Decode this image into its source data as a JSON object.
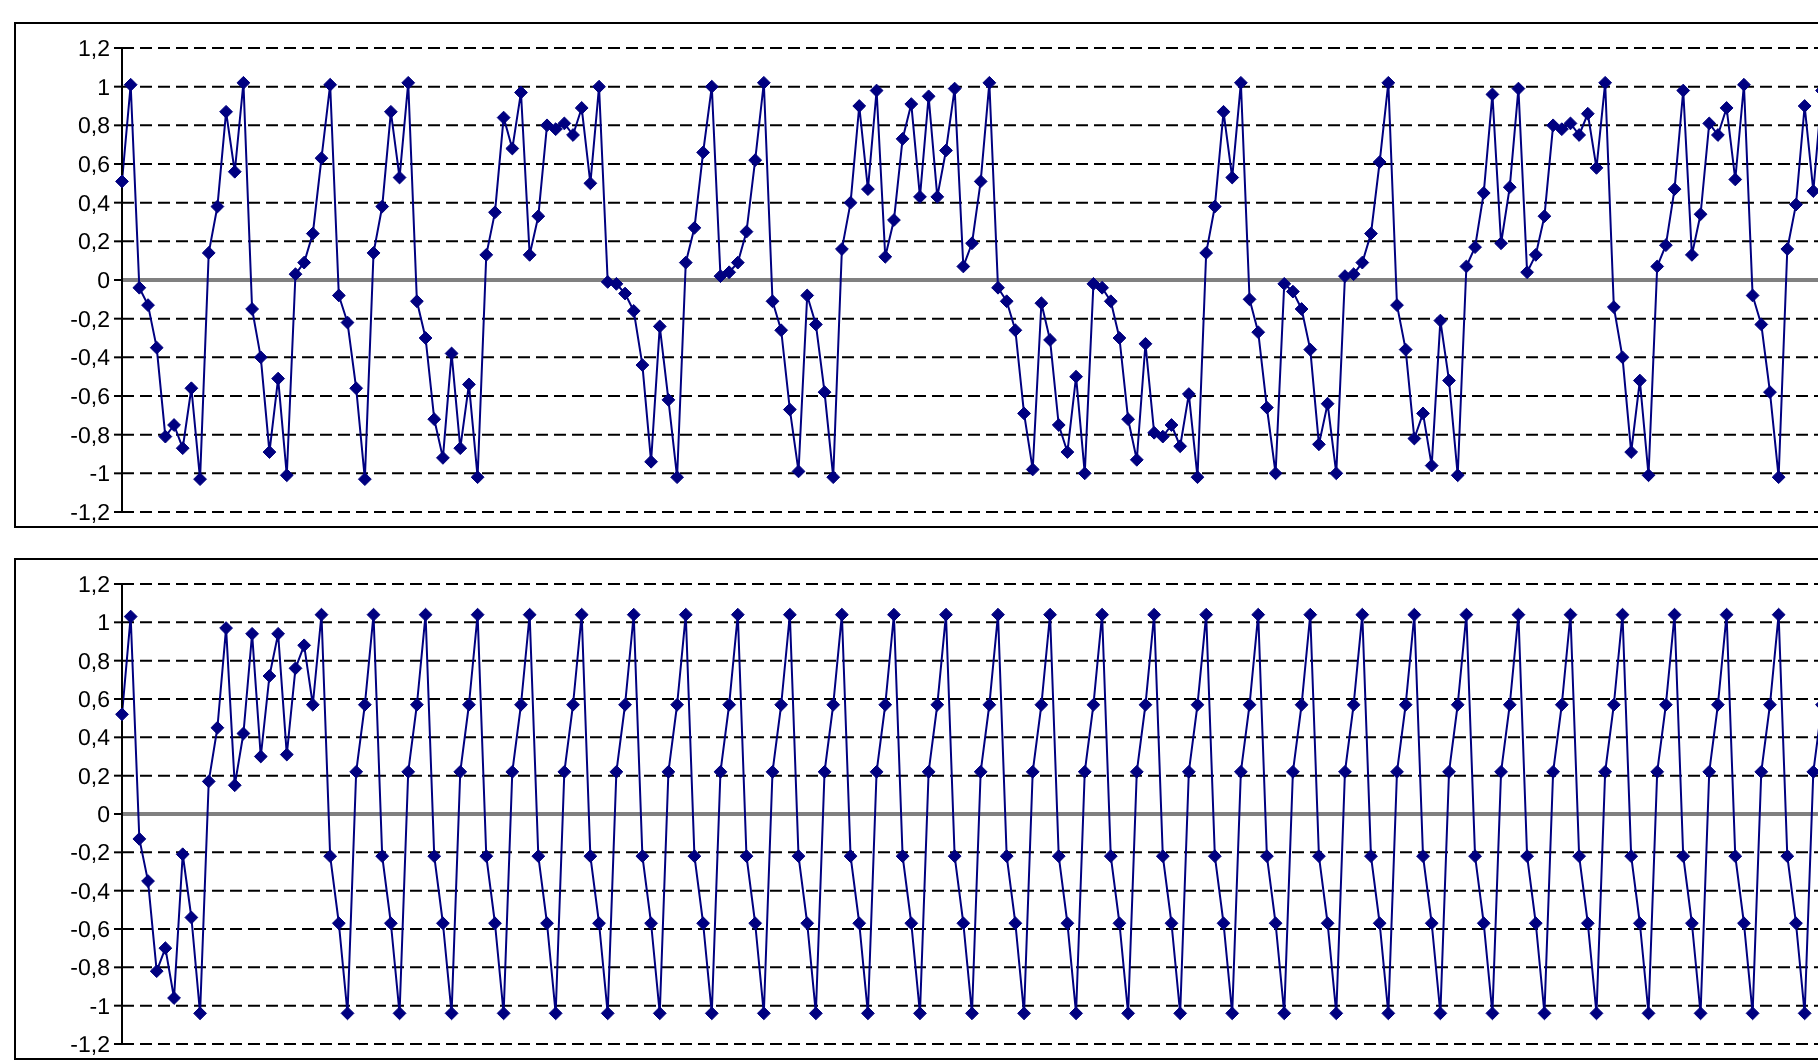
{
  "chart_data": [
    {
      "type": "line",
      "categories": [
        null,
        null,
        null,
        null,
        null,
        null,
        null,
        null,
        null,
        null,
        null,
        null,
        null,
        null,
        null,
        null,
        null,
        null,
        null,
        null,
        null,
        null,
        null,
        null,
        null,
        null,
        null,
        null,
        null,
        null,
        null,
        null,
        null,
        null,
        null,
        null,
        null,
        null,
        null,
        null,
        null,
        null,
        null,
        null,
        null,
        null,
        null,
        null,
        null,
        null,
        null,
        null,
        null,
        null,
        null,
        null,
        null,
        null,
        null,
        null,
        null,
        null,
        null,
        null,
        null,
        null,
        null,
        null,
        null,
        null,
        null,
        null,
        null,
        null,
        null,
        null,
        null,
        null,
        null,
        null,
        null,
        null,
        null,
        null,
        null,
        null,
        null,
        null,
        null,
        null,
        null,
        null,
        null,
        null,
        null,
        null,
        null,
        null,
        null,
        null,
        null,
        null,
        null,
        null,
        null,
        null,
        null,
        null,
        null,
        null,
        null,
        null,
        null,
        null,
        null,
        null,
        null,
        null,
        null,
        null,
        null,
        null,
        null,
        null,
        null,
        null,
        null,
        null,
        null,
        null,
        null,
        null,
        null,
        null,
        null,
        null,
        null,
        null,
        null,
        null,
        null,
        null,
        null,
        null,
        null,
        null,
        null,
        null,
        null,
        null,
        null,
        null,
        null,
        null,
        null,
        null,
        null,
        null,
        null,
        null,
        null,
        null,
        null,
        null,
        null,
        null,
        null,
        null,
        null,
        null,
        null,
        null,
        null,
        null,
        null,
        null,
        null,
        null,
        null,
        null,
        null,
        null,
        null,
        null,
        null,
        null,
        null,
        null,
        null,
        null,
        null,
        null,
        null,
        null,
        null,
        null,
        null
      ],
      "series": [
        {
          "color": "#000080",
          "values": [
            0.51,
            1.01,
            -0.04,
            -0.13,
            -0.35,
            -0.81,
            -0.75,
            -0.87,
            -0.56,
            -1.03,
            0.14,
            0.38,
            0.87,
            0.56,
            1.02,
            -0.15,
            -0.4,
            -0.89,
            -0.51,
            -1.01,
            0.03,
            0.09,
            0.24,
            0.63,
            1.01,
            -0.08,
            -0.22,
            -0.56,
            -1.03,
            0.14,
            0.38,
            0.87,
            0.53,
            1.02,
            -0.11,
            -0.3,
            -0.72,
            -0.92,
            -0.38,
            -0.87,
            -0.54,
            -1.02,
            0.13,
            0.35,
            0.84,
            0.68,
            0.97,
            0.13,
            0.33,
            0.8,
            0.78,
            0.81,
            0.75,
            0.89,
            0.5,
            1.0,
            -0.01,
            -0.02,
            -0.07,
            -0.16,
            -0.44,
            -0.94,
            -0.24,
            -0.62,
            -1.02,
            0.09,
            0.27,
            0.66,
            1.0,
            0.02,
            0.04,
            0.09,
            0.25,
            0.62,
            1.02,
            -0.11,
            -0.26,
            -0.67,
            -0.99,
            -0.08,
            -0.23,
            -0.58,
            -1.02,
            0.16,
            0.4,
            0.9,
            0.47,
            0.98,
            0.12,
            0.31,
            0.73,
            0.91,
            0.43,
            0.95,
            0.43,
            0.67,
            0.99,
            0.07,
            0.19,
            0.51,
            1.02,
            -0.04,
            -0.11,
            -0.26,
            -0.69,
            -0.98,
            -0.12,
            -0.31,
            -0.75,
            -0.89,
            -0.5,
            -1.0,
            -0.02,
            -0.04,
            -0.11,
            -0.3,
            -0.72,
            -0.93,
            -0.33,
            -0.79,
            -0.81,
            -0.75,
            -0.86,
            -0.59,
            -1.02,
            0.14,
            0.38,
            0.87,
            0.53,
            1.02,
            -0.1,
            -0.27,
            -0.66,
            -1.0,
            -0.02,
            -0.06,
            -0.15,
            -0.36,
            -0.85,
            -0.64,
            -1.0,
            0.02,
            0.03,
            0.09,
            0.24,
            0.61,
            1.02,
            -0.13,
            -0.36,
            -0.82,
            -0.69,
            -0.96,
            -0.21,
            -0.52,
            -1.01,
            0.07,
            0.17,
            0.45,
            0.96,
            0.19,
            0.48,
            0.99,
            0.04,
            0.13,
            0.33,
            0.8,
            0.78,
            0.81,
            0.75,
            0.86,
            0.58,
            1.02,
            -0.14,
            -0.4,
            -0.89,
            -0.52,
            -1.01,
            0.07,
            0.18,
            0.47,
            0.98,
            0.13,
            0.34,
            0.81,
            0.75,
            0.89,
            0.52,
            1.01,
            -0.08,
            -0.23,
            -0.58,
            -1.02,
            0.16,
            0.39,
            0.9,
            0.46,
            0.98
          ]
        }
      ],
      "ylim": [
        -1.2,
        1.2
      ],
      "yticks": [
        {
          "value": -1.2,
          "label": "-1,2"
        },
        {
          "value": -1,
          "label": "-1"
        },
        {
          "value": -0.8,
          "label": "-0,8"
        },
        {
          "value": -0.6,
          "label": "-0,6"
        },
        {
          "value": -0.4,
          "label": "-0,4"
        },
        {
          "value": -0.2,
          "label": "-0,2"
        },
        {
          "value": 0,
          "label": "0"
        },
        {
          "value": 0.2,
          "label": "0,2"
        },
        {
          "value": 0.4,
          "label": "0,4"
        },
        {
          "value": 0.6,
          "label": "0,6"
        },
        {
          "value": 0.8,
          "label": "0,8"
        },
        {
          "value": 1,
          "label": "1"
        },
        {
          "value": 1.2,
          "label": "1,2"
        }
      ],
      "grid": "y",
      "marker": "diamond",
      "line_style": "solid",
      "tick_labels": "y",
      "legend": false
    },
    {
      "type": "line",
      "categories": [
        null,
        null,
        null,
        null,
        null,
        null,
        null,
        null,
        null,
        null,
        null,
        null,
        null,
        null,
        null,
        null,
        null,
        null,
        null,
        null,
        null,
        null,
        null,
        null,
        null,
        null,
        null,
        null,
        null,
        null,
        null,
        null,
        null,
        null,
        null,
        null,
        null,
        null,
        null,
        null,
        null,
        null,
        null,
        null,
        null,
        null,
        null,
        null,
        null,
        null,
        null,
        null,
        null,
        null,
        null,
        null,
        null,
        null,
        null,
        null,
        null,
        null,
        null,
        null,
        null,
        null,
        null,
        null,
        null,
        null,
        null,
        null,
        null,
        null,
        null,
        null,
        null,
        null,
        null,
        null,
        null,
        null,
        null,
        null,
        null,
        null,
        null,
        null,
        null,
        null,
        null,
        null,
        null,
        null,
        null,
        null,
        null,
        null,
        null,
        null,
        null,
        null,
        null,
        null,
        null,
        null,
        null,
        null,
        null,
        null,
        null,
        null,
        null,
        null,
        null,
        null,
        null,
        null,
        null,
        null,
        null,
        null,
        null,
        null,
        null,
        null,
        null,
        null,
        null,
        null,
        null,
        null,
        null,
        null,
        null,
        null,
        null,
        null,
        null,
        null,
        null,
        null,
        null,
        null,
        null,
        null,
        null,
        null,
        null,
        null,
        null,
        null,
        null,
        null,
        null,
        null,
        null,
        null,
        null,
        null,
        null,
        null,
        null,
        null,
        null,
        null,
        null,
        null,
        null,
        null,
        null,
        null,
        null,
        null,
        null,
        null,
        null,
        null,
        null,
        null,
        null,
        null,
        null,
        null,
        null,
        null,
        null,
        null,
        null,
        null,
        null,
        null,
        null,
        null,
        null,
        null,
        null
      ],
      "series": [
        {
          "color": "#000080",
          "values": [
            0.52,
            1.03,
            -0.13,
            -0.35,
            -0.82,
            -0.7,
            -0.96,
            -0.21,
            -0.54,
            -1.04,
            0.17,
            0.45,
            0.97,
            0.15,
            0.42,
            0.94,
            0.3,
            0.72,
            0.94,
            0.31,
            0.76,
            0.88,
            0.57,
            1.04,
            -0.22,
            -0.57,
            -1.04,
            0.22,
            0.57,
            1.04,
            -0.22,
            -0.57,
            -1.04,
            0.22,
            0.57,
            1.04,
            -0.22,
            -0.57,
            -1.04,
            0.22,
            0.57,
            1.04,
            -0.22,
            -0.57,
            -1.04,
            0.22,
            0.57,
            1.04,
            -0.22,
            -0.57,
            -1.04,
            0.22,
            0.57,
            1.04,
            -0.22,
            -0.57,
            -1.04,
            0.22,
            0.57,
            1.04,
            -0.22,
            -0.57,
            -1.04,
            0.22,
            0.57,
            1.04,
            -0.22,
            -0.57,
            -1.04,
            0.22,
            0.57,
            1.04,
            -0.22,
            -0.57,
            -1.04,
            0.22,
            0.57,
            1.04,
            -0.22,
            -0.57,
            -1.04,
            0.22,
            0.57,
            1.04,
            -0.22,
            -0.57,
            -1.04,
            0.22,
            0.57,
            1.04,
            -0.22,
            -0.57,
            -1.04,
            0.22,
            0.57,
            1.04,
            -0.22,
            -0.57,
            -1.04,
            0.22,
            0.57,
            1.04,
            -0.22,
            -0.57,
            -1.04,
            0.22,
            0.57,
            1.04,
            -0.22,
            -0.57,
            -1.04,
            0.22,
            0.57,
            1.04,
            -0.22,
            -0.57,
            -1.04,
            0.22,
            0.57,
            1.04,
            -0.22,
            -0.57,
            -1.04,
            0.22,
            0.57,
            1.04,
            -0.22,
            -0.57,
            -1.04,
            0.22,
            0.57,
            1.04,
            -0.22,
            -0.57,
            -1.04,
            0.22,
            0.57,
            1.04,
            -0.22,
            -0.57,
            -1.04,
            0.22,
            0.57,
            1.04,
            -0.22,
            -0.57,
            -1.04,
            0.22,
            0.57,
            1.04,
            -0.22,
            -0.57,
            -1.04,
            0.22,
            0.57,
            1.04,
            -0.22,
            -0.57,
            -1.04,
            0.22,
            0.57,
            1.04,
            -0.22,
            -0.57,
            -1.04,
            0.22,
            0.57,
            1.04,
            -0.22,
            -0.57,
            -1.04,
            0.22,
            0.57,
            1.04,
            -0.22,
            -0.57,
            -1.04,
            0.22,
            0.57,
            1.04,
            -0.22,
            -0.57,
            -1.04,
            0.22,
            0.57,
            1.04,
            -0.22,
            -0.57,
            -1.04,
            0.22,
            0.57,
            1.04,
            -0.22,
            -0.57,
            -1.04,
            0.22,
            0.57
          ]
        }
      ],
      "ylim": [
        -1.2,
        1.2
      ],
      "yticks": [
        {
          "value": -1.2,
          "label": "-1,2"
        },
        {
          "value": -1,
          "label": "-1"
        },
        {
          "value": -0.8,
          "label": "-0,8"
        },
        {
          "value": -0.6,
          "label": "-0,6"
        },
        {
          "value": -0.4,
          "label": "-0,4"
        },
        {
          "value": -0.2,
          "label": "-0,2"
        },
        {
          "value": 0,
          "label": "0"
        },
        {
          "value": 0.2,
          "label": "0,2"
        },
        {
          "value": 0.4,
          "label": "0,4"
        },
        {
          "value": 0.6,
          "label": "0,6"
        },
        {
          "value": 0.8,
          "label": "0,8"
        },
        {
          "value": 1,
          "label": "1"
        },
        {
          "value": 1.2,
          "label": "1,2"
        }
      ],
      "grid": "y",
      "marker": "diamond",
      "line_style": "solid",
      "tick_labels": "y",
      "legend": false
    }
  ]
}
